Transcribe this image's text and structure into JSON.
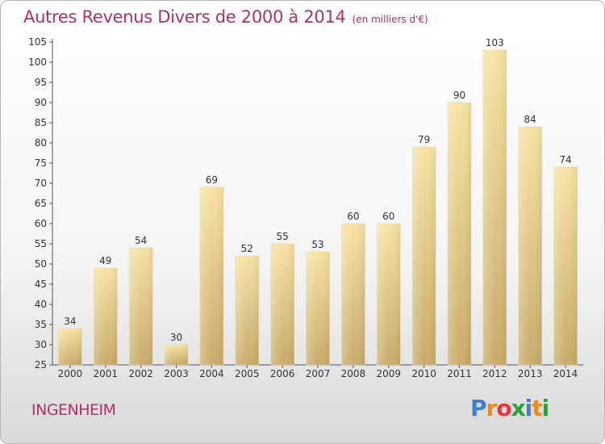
{
  "title": "Autres Revenus Divers de 2000 à 2014",
  "subtitle": "(en milliers d'€)",
  "place": "INGENHEIM",
  "brand": {
    "letters": [
      "P",
      "r",
      "o",
      "x",
      "i",
      "t",
      "i"
    ],
    "colors": [
      "#3d7fd1",
      "#f08a1c",
      "#e8383d",
      "#2f9f3a",
      "#3d7fd1",
      "#f08a1c",
      "#2f9f3a"
    ]
  },
  "colors": {
    "title": "#b0306a",
    "bar_light": "#f7e3a4",
    "bar_dark": "#c9ab6a"
  },
  "chart_data": {
    "type": "bar",
    "categories": [
      "2000",
      "2001",
      "2002",
      "2003",
      "2004",
      "2005",
      "2006",
      "2007",
      "2008",
      "2009",
      "2010",
      "2011",
      "2012",
      "2013",
      "2014"
    ],
    "values": [
      34,
      49,
      54,
      30,
      69,
      52,
      55,
      53,
      60,
      60,
      79,
      90,
      103,
      84,
      74
    ],
    "ylim": [
      25,
      105
    ],
    "yticks": [
      25,
      30,
      35,
      40,
      45,
      50,
      55,
      60,
      65,
      70,
      75,
      80,
      85,
      90,
      95,
      100,
      105
    ],
    "grid": false,
    "legend": "none"
  }
}
